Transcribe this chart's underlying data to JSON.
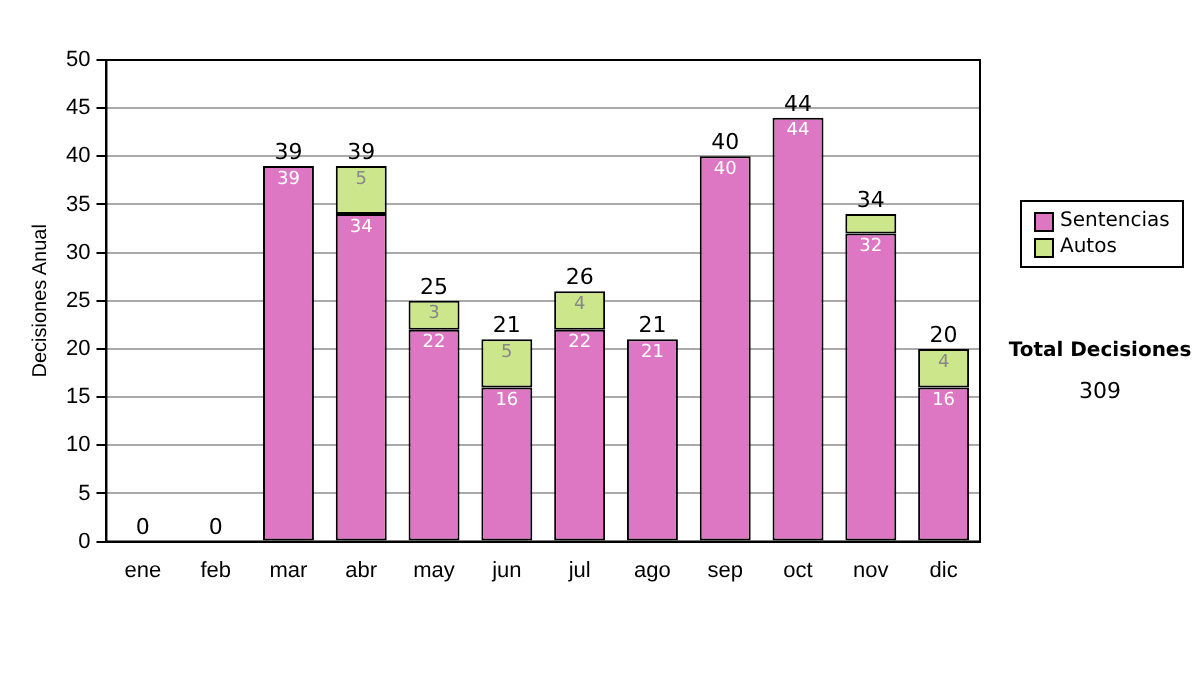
{
  "chart_data": {
    "type": "bar",
    "stacked": true,
    "ylabel": "Decisiones Anual",
    "categories": [
      "ene",
      "feb",
      "mar",
      "abr",
      "may",
      "jun",
      "jul",
      "ago",
      "sep",
      "oct",
      "nov",
      "dic"
    ],
    "series": [
      {
        "name": "Sentencias",
        "color": "#dd77c4",
        "values": [
          0,
          0,
          39,
          34,
          22,
          16,
          22,
          21,
          40,
          44,
          32,
          16
        ],
        "value_labels": [
          null,
          null,
          "39",
          "34",
          "22",
          "16",
          "22",
          "21",
          "40",
          "44",
          "32",
          "16"
        ]
      },
      {
        "name": "Autos",
        "color": "#cce68c",
        "values": [
          0,
          0,
          0,
          5,
          3,
          5,
          4,
          0,
          0,
          0,
          2,
          4
        ],
        "value_labels": [
          null,
          null,
          null,
          "5",
          "3",
          "5",
          "4",
          null,
          null,
          null,
          null,
          "4"
        ]
      }
    ],
    "totals": [
      "0",
      "0",
      "39",
      "39",
      "25",
      "21",
      "26",
      "21",
      "40",
      "44",
      "34",
      "20"
    ],
    "ylim": [
      0,
      50
    ],
    "yticks": [
      0,
      5,
      10,
      15,
      20,
      25,
      30,
      35,
      40,
      45,
      50
    ],
    "grid": "y",
    "legend": "right",
    "annotations": [
      "Total Decisiones",
      "309"
    ]
  }
}
